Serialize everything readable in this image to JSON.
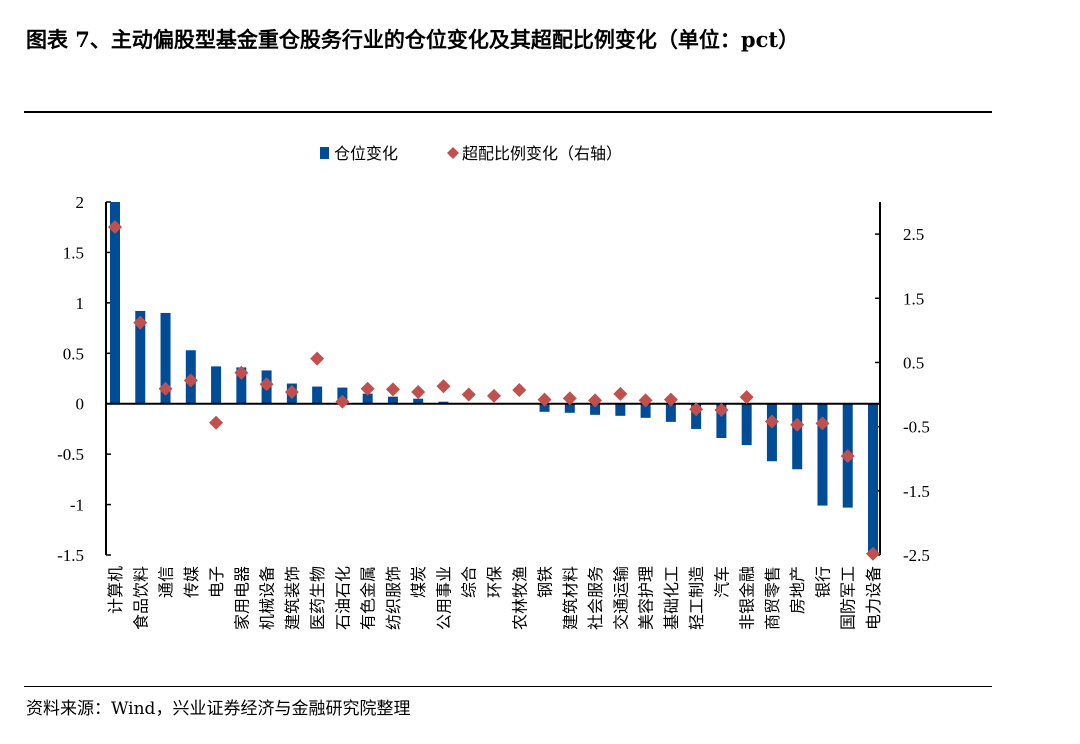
{
  "title": "图表 7、主动偏股型基金重仓股务行业的仓位变化及其超配比例变化（单位：pct）",
  "source": "资料来源：Wind，兴业证券经济与金融研究院整理",
  "chart_data": {
    "type": "bar",
    "title": "图表 7、主动偏股型基金重仓股务行业的仓位变化及其超配比例变化（单位：pct）",
    "categories": [
      "计算机",
      "食品饮料",
      "通信",
      "传媒",
      "电子",
      "家用电器",
      "机械设备",
      "建筑装饰",
      "医药生物",
      "石油石化",
      "有色金属",
      "纺织服饰",
      "煤炭",
      "公用事业",
      "综合",
      "环保",
      "农林牧渔",
      "钢铁",
      "建筑材料",
      "社会服务",
      "交通运输",
      "美容护理",
      "基础化工",
      "轻工制造",
      "汽车",
      "非银金融",
      "商贸零售",
      "房地产",
      "银行",
      "国防军工",
      "电力设备"
    ],
    "series": [
      {
        "name": "仓位变化",
        "type": "bar",
        "axis": "left",
        "color": "#004C97",
        "values": [
          2.0,
          0.92,
          0.9,
          0.53,
          0.37,
          0.36,
          0.33,
          0.2,
          0.17,
          0.16,
          0.1,
          0.07,
          0.05,
          0.02,
          0.0,
          0.0,
          0.0,
          -0.08,
          -0.09,
          -0.11,
          -0.12,
          -0.14,
          -0.18,
          -0.25,
          -0.34,
          -0.41,
          -0.57,
          -0.65,
          -1.01,
          -1.03,
          -1.5
        ]
      },
      {
        "name": "超配比例变化（右轴）",
        "type": "scatter",
        "marker": "diamond",
        "axis": "right",
        "color": "#C0504D",
        "values": [
          2.61,
          1.12,
          0.09,
          0.22,
          -0.44,
          0.34,
          0.16,
          0.04,
          0.56,
          -0.11,
          0.09,
          0.08,
          0.04,
          0.13,
          0.0,
          -0.02,
          0.07,
          -0.08,
          -0.06,
          -0.09,
          0.01,
          -0.09,
          -0.08,
          -0.23,
          -0.24,
          -0.04,
          -0.42,
          -0.47,
          -0.45,
          -0.96,
          -2.48
        ]
      }
    ],
    "left_axis": {
      "ylim": [
        -1.5,
        2
      ],
      "ticks": [
        "2",
        "1.5",
        "1",
        "0.5",
        "0",
        "-0.5",
        "-1",
        "-1.5"
      ],
      "tick_values": [
        2,
        1.5,
        1,
        0.5,
        0,
        -0.5,
        -1,
        -1.5
      ]
    },
    "right_axis": {
      "ylim": [
        -2.5,
        3
      ],
      "ticks": [
        "2.5",
        "1.5",
        "0.5",
        "-0.5",
        "-1.5",
        "-2.5"
      ],
      "tick_values": [
        2.5,
        1.5,
        0.5,
        -0.5,
        -1.5,
        -2.5
      ]
    },
    "legend": "top-center",
    "grid": false
  }
}
